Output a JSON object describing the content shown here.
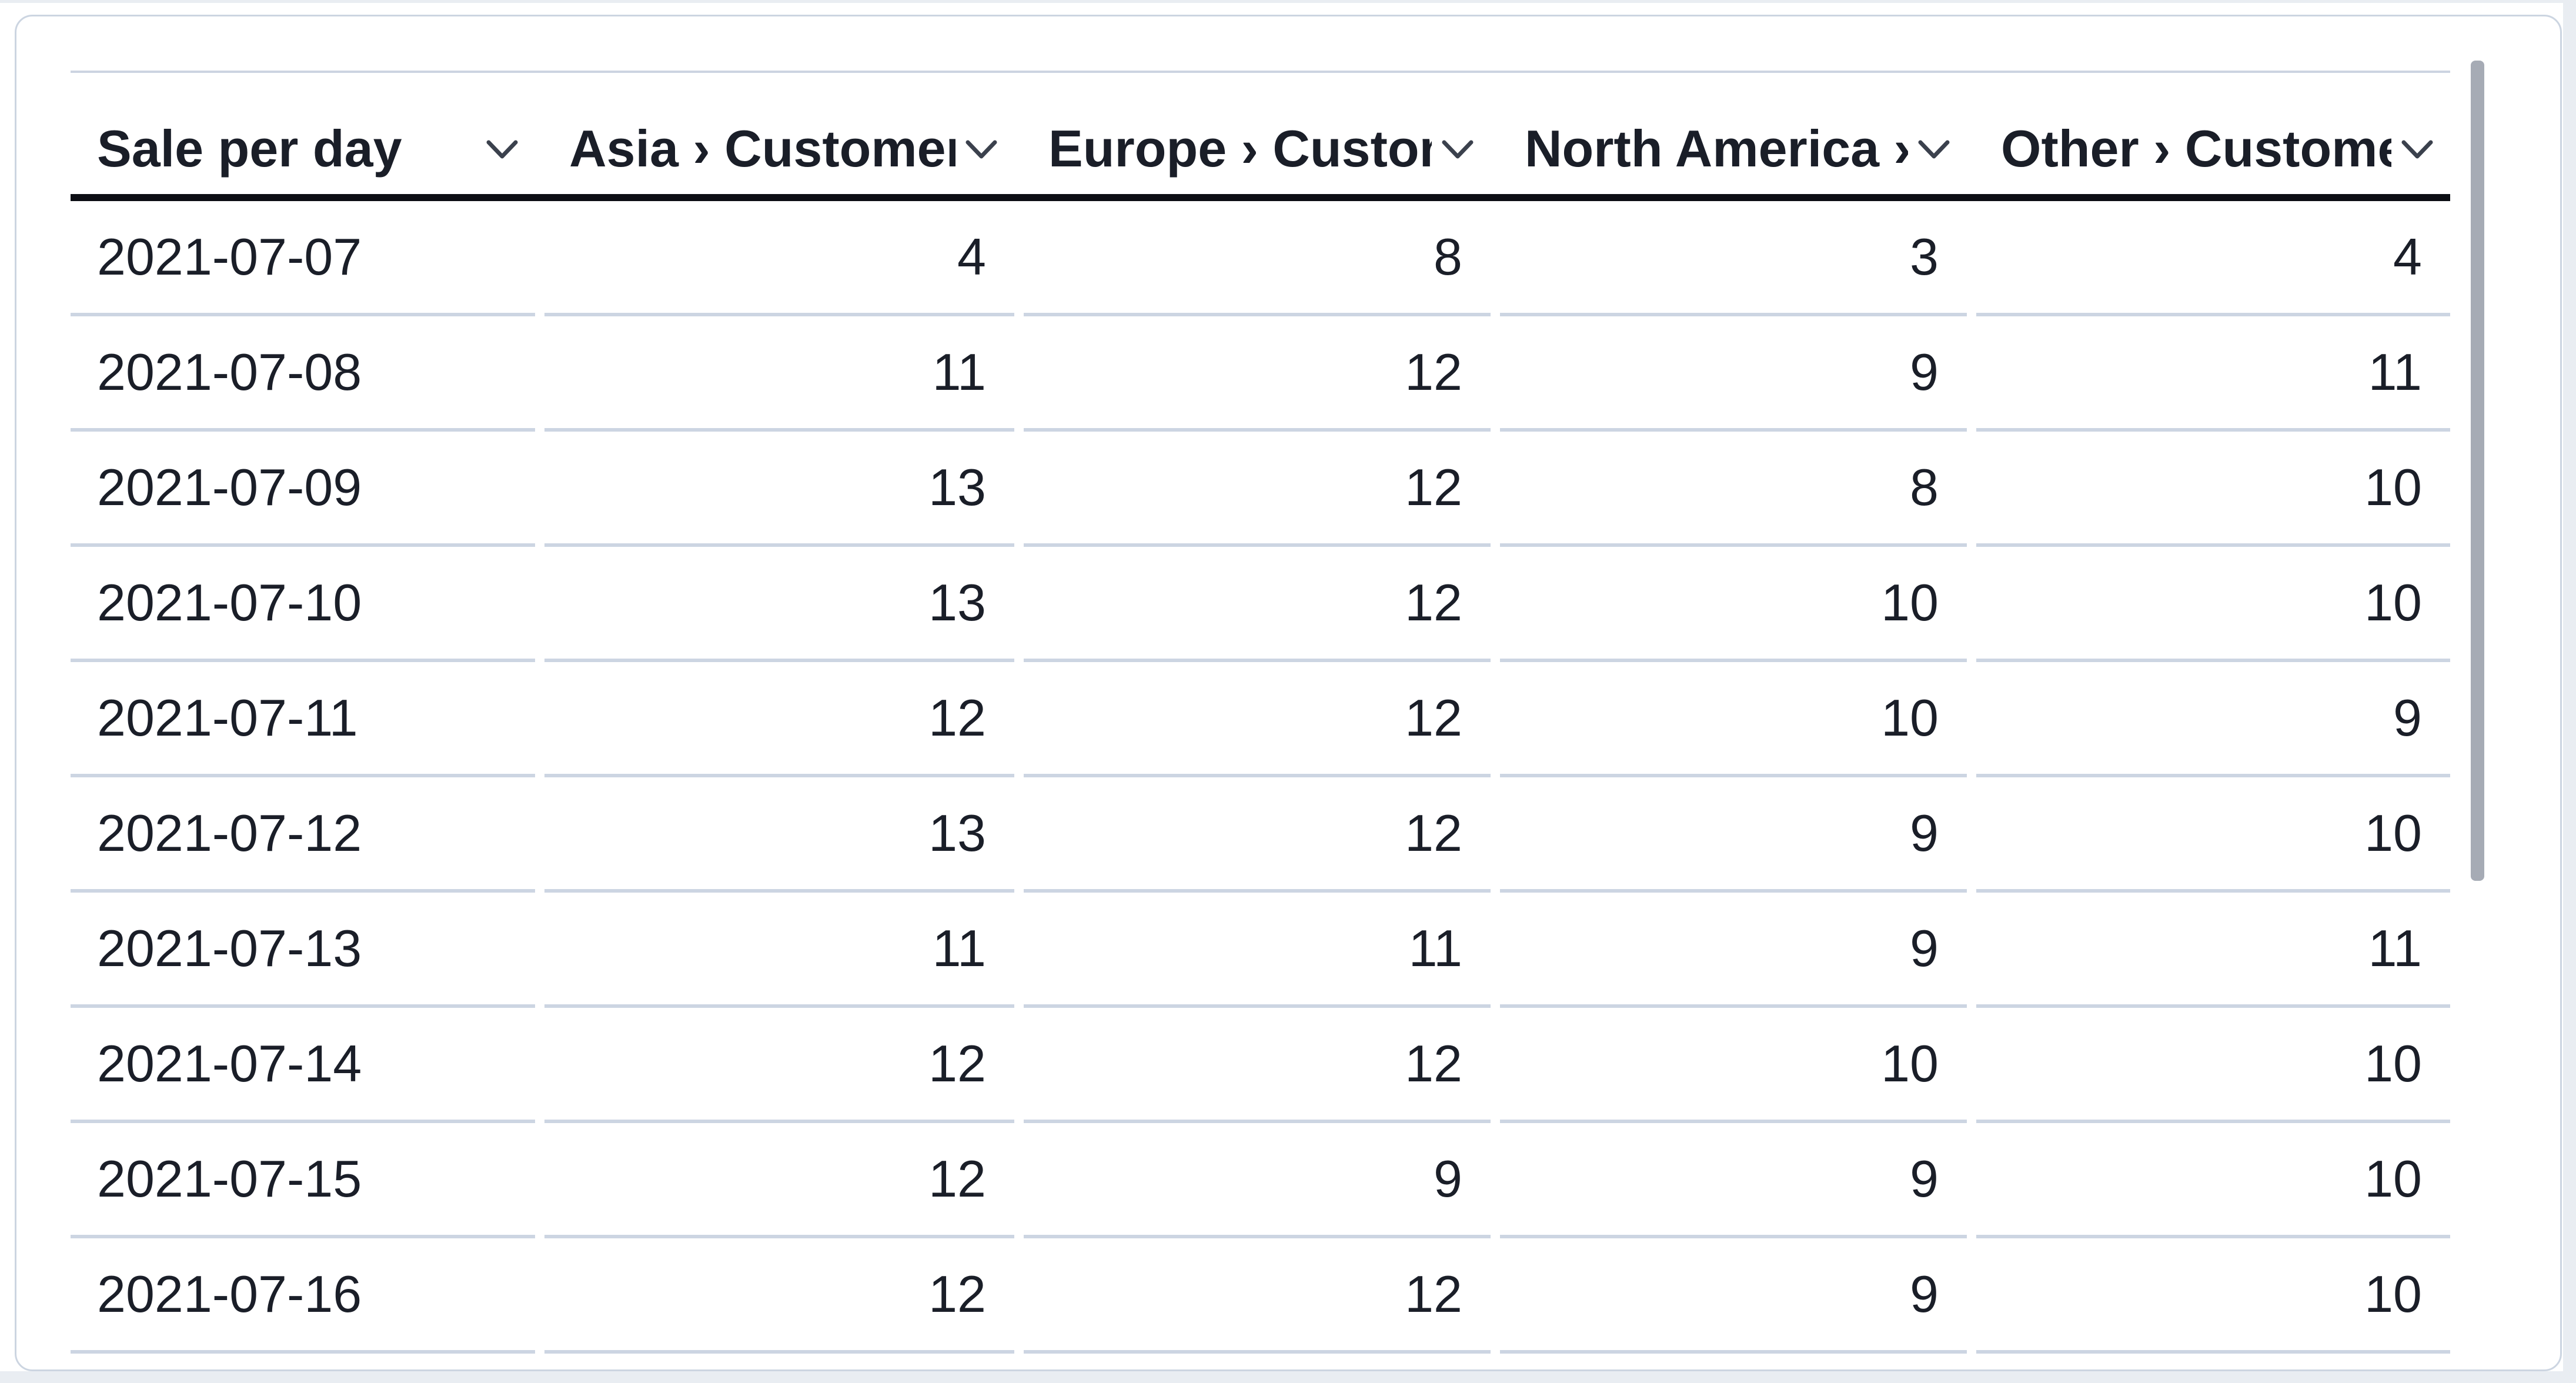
{
  "widget": {
    "type": "table-card",
    "scrollbar_visible": true
  },
  "table": {
    "columns": [
      {
        "id": "sale_per_day",
        "label": "Sale per day",
        "align": "left"
      },
      {
        "id": "asia",
        "label": "Asia › Customers",
        "align": "right"
      },
      {
        "id": "europe",
        "label": "Europe › Customers",
        "align": "right"
      },
      {
        "id": "north_america",
        "label": "North America › Customers",
        "align": "right"
      },
      {
        "id": "other",
        "label": "Other › Customers",
        "align": "right"
      }
    ],
    "rows": [
      {
        "date": "2021-07-07",
        "values": [
          4,
          8,
          3,
          4
        ]
      },
      {
        "date": "2021-07-08",
        "values": [
          11,
          12,
          9,
          11
        ]
      },
      {
        "date": "2021-07-09",
        "values": [
          13,
          12,
          8,
          10
        ]
      },
      {
        "date": "2021-07-10",
        "values": [
          13,
          12,
          10,
          10
        ]
      },
      {
        "date": "2021-07-11",
        "values": [
          12,
          12,
          10,
          9
        ]
      },
      {
        "date": "2021-07-12",
        "values": [
          13,
          12,
          9,
          10
        ]
      },
      {
        "date": "2021-07-13",
        "values": [
          11,
          11,
          9,
          11
        ]
      },
      {
        "date": "2021-07-14",
        "values": [
          12,
          12,
          10,
          10
        ]
      },
      {
        "date": "2021-07-15",
        "values": [
          12,
          9,
          9,
          10
        ]
      },
      {
        "date": "2021-07-16",
        "values": [
          12,
          12,
          9,
          10
        ]
      }
    ]
  },
  "icons": {
    "column_menu": "chevron-down"
  },
  "colors": {
    "text": "#1a1e28",
    "header_rule": "#0c0e14",
    "row_divider": "#ccd5e2",
    "card_border": "#ccd5e1",
    "scrollbar_thumb": "#a6abb5",
    "page_edge": "#e9edf2",
    "background": "#ffffff"
  }
}
